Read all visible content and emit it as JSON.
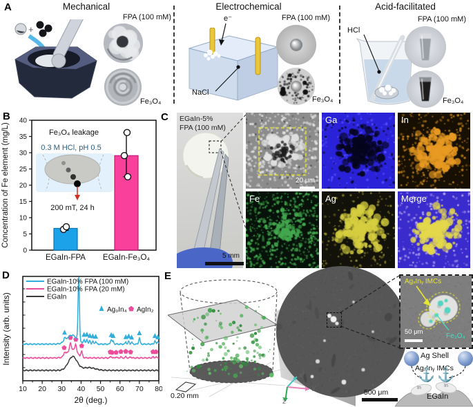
{
  "panel_a": {
    "label": "A",
    "methods": [
      {
        "title": "Mechanical",
        "fpa_label": "FPA (100 mM)",
        "oxide_label": "Fe₃O₄"
      },
      {
        "title": "Electrochemical",
        "fpa_label": "FPA (100 mM)",
        "oxide_label": "Fe₃O₄",
        "electron_label": "e⁻",
        "salt_label": "NaCl"
      },
      {
        "title": "Acid-facilitated",
        "fpa_label": "FPA (100 mM)",
        "oxide_label": "Fe₃O₄",
        "acid_label": "HCl"
      }
    ]
  },
  "panel_b": {
    "label": "B",
    "inset": {
      "line1": "Fe₃O₄ leakage",
      "line2": "0.3 M HCl, pH 0.5",
      "line3": "200 mT, 24 h"
    },
    "inset_text_color": "#2a5e80"
  },
  "panel_c": {
    "label": "C",
    "sample_line1": "EGaIn-5%",
    "sample_line2": "FPA (100 mM)",
    "photo_scale": "5 mm",
    "sem_scale": "20 μm",
    "maps": [
      {
        "label": "Ga",
        "bg": "#2A22D8",
        "cluster": "#06051E",
        "speck": "#5550FF",
        "speckN": 140,
        "mode": "inverse"
      },
      {
        "label": "In",
        "bg": "#160F02",
        "cluster": "#E89A22",
        "speck": "#C07F18",
        "speckN": 260,
        "mode": "cluster"
      },
      {
        "label": "Fe",
        "bg": "#07130A",
        "cluster": "",
        "speck": "#43A84E",
        "speckN": 520,
        "mode": "speckle"
      },
      {
        "label": "Ag",
        "bg": "#12110A",
        "cluster": "#D6CE40",
        "speck": "#8F892B",
        "speckN": 180,
        "mode": "cluster"
      },
      {
        "label": "Merge",
        "bg": "#3A2CCC",
        "cluster": "#E4D84C",
        "speck": "#B9A8F0",
        "speckN": 220,
        "mode": "cluster"
      }
    ]
  },
  "panel_d": {
    "label": "D"
  },
  "panel_e": {
    "label": "E",
    "scale_3d": "0.20 mm",
    "axis_x": "x",
    "axis_y": "y",
    "axis_z": "z",
    "sem_scale": "500 μm",
    "inset": {
      "imc_label": "AgₓInᵧ IMCs",
      "oxide_label": "Fe₃O₄",
      "scale": "50 μm",
      "imc_color": "#E6E636",
      "oxide_color": "#48DCC8"
    },
    "schematic": {
      "shell": "Ag Shell",
      "imc": "AgₓInᵧ IMCs",
      "base": "EGaIn",
      "in_left": "In",
      "in_right": "In"
    }
  },
  "chart_data": [
    {
      "id": "fe-leakage-bar",
      "type": "bar",
      "categories": [
        "EGaIn-FPA",
        "EGaIn-Fe₃O₄"
      ],
      "values": [
        6.7,
        29.1
      ],
      "error_low": [
        6.1,
        22.6
      ],
      "error_high": [
        7.3,
        36.2
      ],
      "scatter_points": [
        [
          6.4,
          7.2
        ],
        [
          29.1,
          36.2,
          22.6
        ]
      ],
      "bar_colors": [
        "#1BA2E8",
        "#F9409B"
      ],
      "bar_edges": [
        "#0E76B4",
        "#C2187A"
      ],
      "ylabel": "Concentration of Fe element (mg/L)",
      "ylim": [
        0,
        40
      ],
      "ytick_step": 5,
      "annotations": [
        "Fe₃O₄ leakage",
        "0.3 M HCl, pH 0.5",
        "200 mT, 24 h"
      ]
    },
    {
      "id": "xrd",
      "type": "line",
      "xlabel": "2θ (deg.)",
      "ylabel": "Intensity (arb. units)",
      "xlim": [
        10,
        80
      ],
      "xticks": [
        10,
        20,
        30,
        40,
        50,
        60,
        70,
        80
      ],
      "series": [
        {
          "name": "EGaIn-10% FPA (100 mM)",
          "color": "#30AEDC",
          "baseline": 53,
          "peaks": [
            [
              35.2,
              13,
              3.8
            ],
            [
              38.8,
              92,
              0.5
            ],
            [
              31.5,
              5,
              0.5
            ],
            [
              41.5,
              6,
              0.5
            ],
            [
              43,
              7,
              0.5
            ],
            [
              44.5,
              5,
              0.5
            ],
            [
              46,
              4,
              0.5
            ],
            [
              47.5,
              4,
              0.5
            ],
            [
              55.5,
              7,
              0.5
            ],
            [
              56.5,
              4,
              0.5
            ],
            [
              63,
              3,
              0.45
            ],
            [
              64.5,
              4,
              0.45
            ],
            [
              66,
              3,
              0.45
            ],
            [
              70,
              9,
              0.5
            ],
            [
              78,
              5,
              0.45
            ],
            [
              79.5,
              4,
              0.45
            ]
          ],
          "marker": "triangle",
          "marker_positions": [
            31.5,
            41.5,
            43,
            44.5,
            46,
            47.5,
            55.5,
            56.5,
            63,
            64.5,
            66,
            70,
            78,
            79.5
          ]
        },
        {
          "name": "EGaIn-10% FPA (20 mM)",
          "color": "#EC4D9B",
          "baseline": 33,
          "peaks": [
            [
              35.3,
              13,
              3.5
            ],
            [
              31.5,
              5,
              0.55
            ],
            [
              34.5,
              9,
              0.55
            ],
            [
              37.3,
              11,
              0.55
            ],
            [
              40.3,
              8,
              0.55
            ],
            [
              55.4,
              2,
              0.6
            ],
            [
              58,
              1.5,
              0.5
            ],
            [
              60.5,
              1.5,
              0.5
            ],
            [
              63,
              1.5,
              0.5
            ],
            [
              65.5,
              1.5,
              0.5
            ],
            [
              77,
              1.5,
              0.5
            ],
            [
              78.5,
              1.5,
              0.5
            ]
          ],
          "marker": "pentagon",
          "marker_positions": [
            31.3,
            34.5,
            37.3,
            40.3,
            55,
            55.9,
            58,
            60.5,
            63,
            65.5,
            77,
            78.5
          ]
        },
        {
          "name": "EGaIn",
          "color": "#3A3A3A",
          "baseline": 15,
          "peaks": [
            [
              35.7,
              20,
              3.2
            ],
            [
              44,
              4,
              4.5
            ]
          ],
          "marker": "",
          "marker_positions": []
        }
      ],
      "marker_legend": [
        {
          "symbol": "triangle",
          "label": "Ag₉In₄",
          "color": "#30AEDC"
        },
        {
          "symbol": "pentagon",
          "label": "AgIn₂",
          "color": "#EC4D9B"
        }
      ]
    }
  ]
}
